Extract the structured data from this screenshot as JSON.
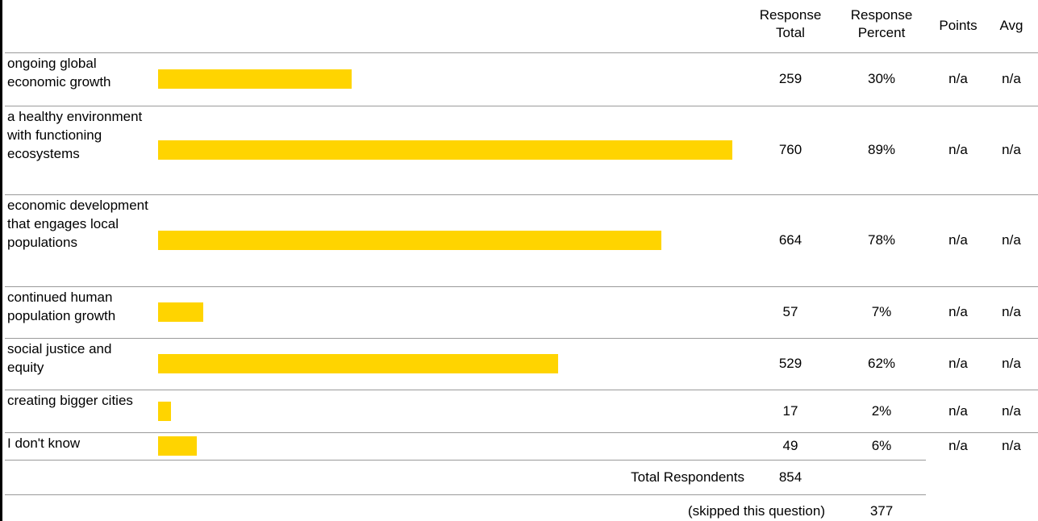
{
  "header": {
    "response_total": "Response\nTotal",
    "response_percent": "Response\nPercent",
    "points": "Points",
    "avg": "Avg"
  },
  "chart_data": {
    "type": "bar",
    "orientation": "horizontal",
    "bar_color": "#ffd400",
    "xlim": [
      0,
      100
    ],
    "rows": [
      {
        "label": "ongoing global economic growth",
        "total": "259",
        "percent": "30%",
        "value": 30,
        "points": "n/a",
        "avg": "n/a"
      },
      {
        "label": "a healthy environment with functioning ecosystems",
        "total": "760",
        "percent": "89%",
        "value": 89,
        "points": "n/a",
        "avg": "n/a"
      },
      {
        "label": "economic development that engages local populations",
        "total": "664",
        "percent": "78%",
        "value": 78,
        "points": "n/a",
        "avg": "n/a"
      },
      {
        "label": "continued human population growth",
        "total": "57",
        "percent": "7%",
        "value": 7,
        "points": "n/a",
        "avg": "n/a"
      },
      {
        "label": "social justice and equity",
        "total": "529",
        "percent": "62%",
        "value": 62,
        "points": "n/a",
        "avg": "n/a"
      },
      {
        "label": "creating bigger cities",
        "total": "17",
        "percent": "2%",
        "value": 2,
        "points": "n/a",
        "avg": "n/a"
      },
      {
        "label": "I don't know",
        "total": "49",
        "percent": "6%",
        "value": 6,
        "points": "n/a",
        "avg": "n/a"
      }
    ]
  },
  "footer": {
    "total_label": "Total Respondents",
    "total_value": "854",
    "skipped_label": "(skipped this question)",
    "skipped_value": "377"
  }
}
